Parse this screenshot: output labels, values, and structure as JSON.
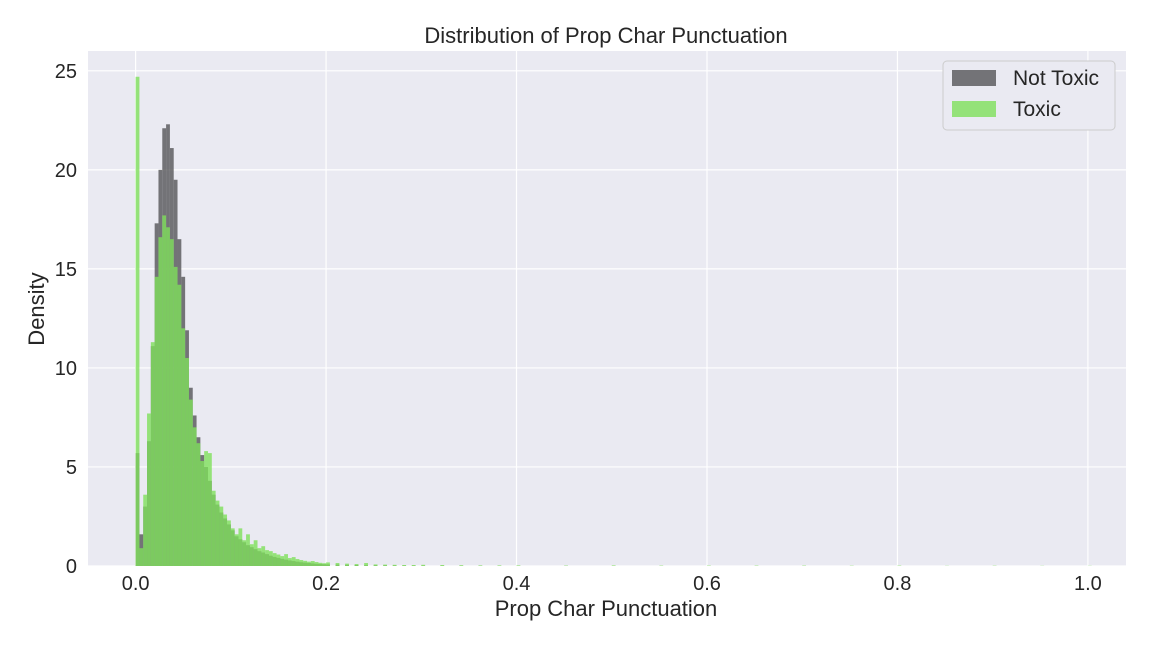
{
  "chart_data": {
    "type": "bar",
    "title": "Distribution of Prop Char Punctuation",
    "xlabel": "Prop Char Punctuation",
    "ylabel": "Density",
    "xlim": [
      -0.05,
      1.04
    ],
    "ylim": [
      0,
      26
    ],
    "xticks": [
      0.0,
      0.2,
      0.4,
      0.6,
      0.8,
      1.0
    ],
    "xtick_labels": [
      "0.0",
      "0.2",
      "0.4",
      "0.6",
      "0.8",
      "1.0"
    ],
    "yticks": [
      0,
      5,
      10,
      15,
      20,
      25
    ],
    "ytick_labels": [
      "0",
      "5",
      "10",
      "15",
      "20",
      "25"
    ],
    "grid": true,
    "legend_position": "top-right",
    "bin_width": 0.004,
    "series": [
      {
        "name": "Not Toxic",
        "color": "#555558",
        "opacity": 0.8,
        "x": [
          0.0,
          0.004,
          0.008,
          0.012,
          0.016,
          0.02,
          0.024,
          0.028,
          0.032,
          0.036,
          0.04,
          0.044,
          0.048,
          0.052,
          0.056,
          0.06,
          0.064,
          0.068,
          0.072,
          0.076,
          0.08,
          0.084,
          0.088,
          0.092,
          0.096,
          0.1,
          0.104,
          0.108,
          0.112,
          0.116,
          0.12,
          0.124,
          0.128,
          0.132,
          0.136,
          0.14,
          0.144,
          0.148,
          0.152,
          0.156,
          0.16,
          0.164,
          0.168,
          0.172,
          0.176,
          0.18,
          0.184,
          0.188,
          0.192,
          0.196,
          0.2,
          0.21,
          0.22,
          0.23,
          0.24,
          0.25,
          0.26,
          0.27,
          0.28,
          0.29,
          0.3,
          0.32,
          0.34,
          0.36,
          0.38,
          0.4,
          0.45,
          0.5
        ],
        "values": [
          5.7,
          1.6,
          3.0,
          6.3,
          11.1,
          17.3,
          20.0,
          22.1,
          22.3,
          21.1,
          19.5,
          16.5,
          14.6,
          11.9,
          9.0,
          7.6,
          6.5,
          5.6,
          5.0,
          4.3,
          3.6,
          3.1,
          2.7,
          2.4,
          2.1,
          1.8,
          1.5,
          1.35,
          1.2,
          1.05,
          0.95,
          0.85,
          0.75,
          0.68,
          0.6,
          0.52,
          0.46,
          0.41,
          0.36,
          0.32,
          0.28,
          0.25,
          0.22,
          0.19,
          0.17,
          0.15,
          0.13,
          0.11,
          0.1,
          0.09,
          0.08,
          0.07,
          0.06,
          0.05,
          0.04,
          0.035,
          0.03,
          0.025,
          0.02,
          0.018,
          0.015,
          0.012,
          0.01,
          0.008,
          0.006,
          0.005,
          0.004,
          0.003
        ]
      },
      {
        "name": "Toxic",
        "color": "#7ee05a",
        "opacity": 0.8,
        "x": [
          0.0,
          0.004,
          0.008,
          0.012,
          0.016,
          0.02,
          0.024,
          0.028,
          0.032,
          0.036,
          0.04,
          0.044,
          0.048,
          0.052,
          0.056,
          0.06,
          0.064,
          0.068,
          0.072,
          0.076,
          0.08,
          0.084,
          0.088,
          0.092,
          0.096,
          0.1,
          0.104,
          0.108,
          0.112,
          0.116,
          0.12,
          0.124,
          0.128,
          0.132,
          0.136,
          0.14,
          0.144,
          0.148,
          0.152,
          0.156,
          0.16,
          0.164,
          0.168,
          0.172,
          0.176,
          0.18,
          0.184,
          0.188,
          0.192,
          0.196,
          0.2,
          0.21,
          0.22,
          0.23,
          0.24,
          0.25,
          0.26,
          0.27,
          0.28,
          0.29,
          0.3,
          0.32,
          0.34,
          0.36,
          0.38,
          0.4,
          0.45,
          0.5,
          0.55,
          0.6,
          0.65,
          0.7,
          0.75,
          0.8,
          0.85,
          0.9,
          0.95,
          1.0
        ],
        "values": [
          24.7,
          0.9,
          3.6,
          7.7,
          11.3,
          14.6,
          16.6,
          17.7,
          17.1,
          16.5,
          15.1,
          14.2,
          12.0,
          10.5,
          8.4,
          7.0,
          6.2,
          5.3,
          5.8,
          5.7,
          3.8,
          3.3,
          3.0,
          2.6,
          2.3,
          1.9,
          1.6,
          1.9,
          1.3,
          1.6,
          1.1,
          1.3,
          0.9,
          1.0,
          0.8,
          0.75,
          0.65,
          0.58,
          0.5,
          0.6,
          0.4,
          0.45,
          0.35,
          0.3,
          0.26,
          0.22,
          0.25,
          0.2,
          0.16,
          0.14,
          0.18,
          0.15,
          0.12,
          0.1,
          0.15,
          0.08,
          0.07,
          0.06,
          0.05,
          0.05,
          0.06,
          0.05,
          0.04,
          0.03,
          0.03,
          0.03,
          0.02,
          0.03,
          0.02,
          0.02,
          0.02,
          0.02,
          0.015,
          0.02,
          0.01,
          0.015,
          0.01,
          0.01
        ]
      }
    ]
  }
}
